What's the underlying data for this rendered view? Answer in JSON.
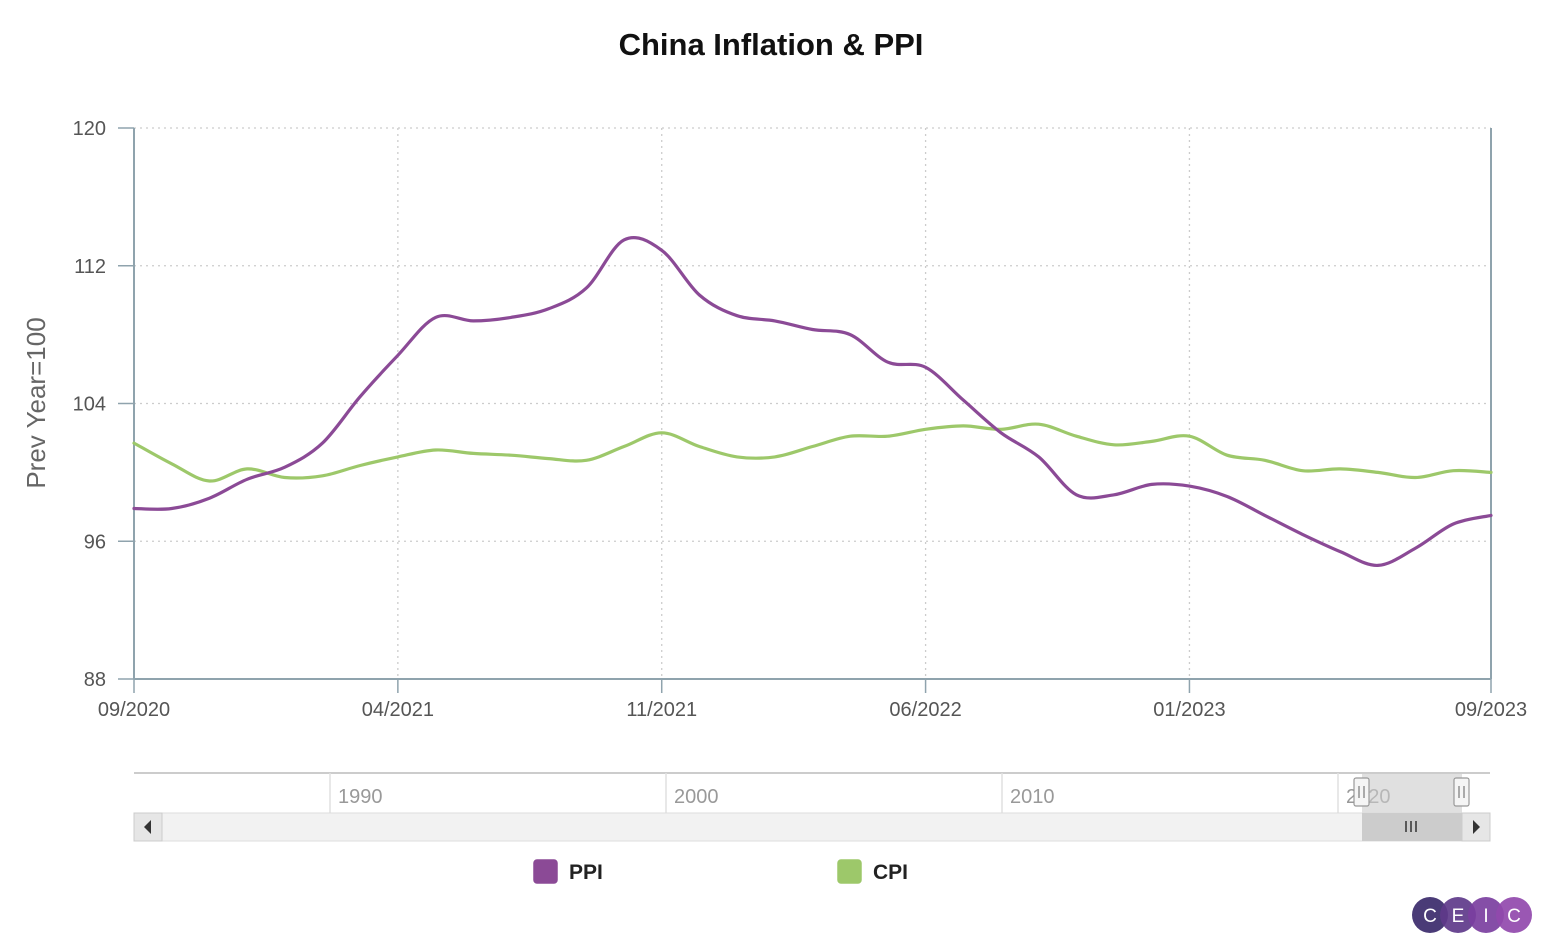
{
  "chart_data": {
    "type": "line",
    "title": "China Inflation & PPI",
    "ylabel": "Prev Year=100",
    "xlabel": "",
    "ylim": [
      88,
      120
    ],
    "yticks": [
      "88",
      "96",
      "104",
      "112",
      "120"
    ],
    "xticks": [
      "09/2020",
      "04/2021",
      "11/2021",
      "06/2022",
      "01/2023",
      "09/2023"
    ],
    "x": [
      "09/2020",
      "10/2020",
      "11/2020",
      "12/2020",
      "01/2021",
      "02/2021",
      "03/2021",
      "04/2021",
      "05/2021",
      "06/2021",
      "07/2021",
      "08/2021",
      "09/2021",
      "10/2021",
      "11/2021",
      "12/2021",
      "01/2022",
      "02/2022",
      "03/2022",
      "04/2022",
      "05/2022",
      "06/2022",
      "07/2022",
      "08/2022",
      "09/2022",
      "10/2022",
      "11/2022",
      "12/2022",
      "01/2023",
      "02/2023",
      "03/2023",
      "04/2023",
      "05/2023",
      "06/2023",
      "07/2023",
      "08/2023",
      "09/2023"
    ],
    "series": [
      {
        "name": "PPI",
        "color": "#8b4a96",
        "values": [
          97.9,
          97.9,
          98.5,
          99.6,
          100.3,
          101.7,
          104.4,
          106.8,
          109.0,
          108.8,
          109.0,
          109.5,
          110.7,
          113.5,
          112.9,
          110.3,
          109.1,
          108.8,
          108.3,
          108.0,
          106.4,
          106.1,
          104.2,
          102.3,
          100.9,
          98.7,
          98.7,
          99.3,
          99.2,
          98.6,
          97.5,
          96.4,
          95.4,
          94.6,
          95.6,
          97.0,
          97.5
        ]
      },
      {
        "name": "CPI",
        "color": "#9dc86a",
        "values": [
          101.7,
          100.5,
          99.5,
          100.2,
          99.7,
          99.8,
          100.4,
          100.9,
          101.3,
          101.1,
          101.0,
          100.8,
          100.7,
          101.5,
          102.3,
          101.5,
          100.9,
          100.9,
          101.5,
          102.1,
          102.1,
          102.5,
          102.7,
          102.5,
          102.8,
          102.1,
          101.6,
          101.8,
          102.1,
          101.0,
          100.7,
          100.1,
          100.2,
          100.0,
          99.7,
          100.1,
          100.0
        ]
      }
    ],
    "legend": {
      "position": "bottom",
      "items": [
        "PPI",
        "CPI"
      ]
    },
    "grid": true,
    "navigator": {
      "labels": [
        "1990",
        "2000",
        "2010",
        "2020"
      ]
    }
  },
  "branding": {
    "logo_letters": [
      "C",
      "E",
      "I",
      "C"
    ],
    "logo_colors": [
      "#3b2a6b",
      "#5e3a8a",
      "#7b3fa0",
      "#9149ad"
    ]
  },
  "colors": {
    "grid": "#cccccc",
    "axis": "#8fa3ad",
    "navigator_track": "#f2f2f2",
    "navigator_mask": "#cccccc"
  }
}
